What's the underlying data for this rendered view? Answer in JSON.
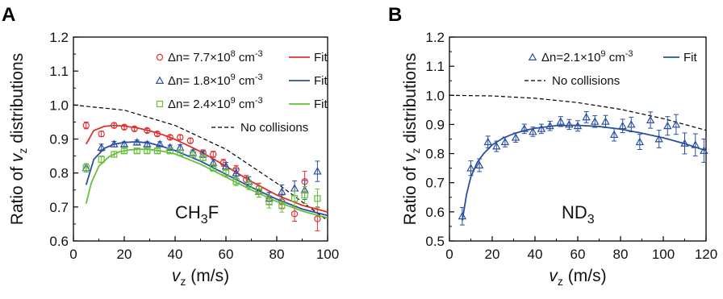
{
  "chart_data": [
    {
      "panel": "A",
      "type": "scatter",
      "xlabel": "v_z (m/s)",
      "ylabel": "Ratio of v_z distributions",
      "xlim": [
        0,
        100
      ],
      "ylim": [
        0.6,
        1.2
      ],
      "xticks": [
        0,
        20,
        40,
        60,
        80,
        100
      ],
      "yticks": [
        0.6,
        0.7,
        0.8,
        0.9,
        1.0,
        1.1,
        1.2
      ],
      "tick_labels_y": [
        "0.6",
        "0.7",
        "0.8",
        "0.9",
        "1.0",
        "1.1",
        "1.2"
      ],
      "annotation": "CH3F",
      "legend_position": "top-right",
      "nocoll_label": "No collisions",
      "nocoll_curve": {
        "x": [
          0,
          20,
          40,
          60,
          80,
          100
        ],
        "y": [
          1.0,
          0.985,
          0.94,
          0.87,
          0.77,
          0.66
        ]
      },
      "series": [
        {
          "name": "Δn= 7.7×10^8 cm^-3",
          "fit_label": "Fit",
          "marker": "circle",
          "color": "#e03030",
          "x": [
            5,
            11,
            16,
            20,
            24,
            29,
            33,
            38,
            42,
            46,
            51,
            55,
            59,
            64,
            68,
            73,
            77,
            82,
            87,
            91,
            96
          ],
          "y": [
            0.94,
            0.915,
            0.94,
            0.935,
            0.93,
            0.925,
            0.915,
            0.905,
            0.905,
            0.895,
            0.86,
            0.855,
            0.83,
            0.81,
            0.78,
            0.755,
            0.725,
            0.715,
            0.68,
            0.775,
            0.665
          ],
          "err": [
            0.01,
            0.008,
            0.007,
            0.006,
            0.006,
            0.006,
            0.006,
            0.006,
            0.007,
            0.007,
            0.008,
            0.009,
            0.01,
            0.012,
            0.013,
            0.015,
            0.017,
            0.02,
            0.022,
            0.03,
            0.035
          ],
          "fit": {
            "x": [
              5,
              8,
              12,
              16,
              20,
              25,
              30,
              35,
              40,
              50,
              60,
              70,
              80,
              90,
              100
            ],
            "y": [
              0.885,
              0.925,
              0.937,
              0.94,
              0.938,
              0.933,
              0.924,
              0.913,
              0.899,
              0.863,
              0.82,
              0.775,
              0.735,
              0.705,
              0.685
            ]
          }
        },
        {
          "name": "Δn= 1.8×10^9 cm^-3",
          "fit_label": "Fit",
          "marker": "triangle",
          "color": "#2a4fa0",
          "x": [
            5,
            11,
            16,
            20,
            25,
            29,
            34,
            38,
            42,
            47,
            51,
            55,
            60,
            64,
            69,
            73,
            77,
            82,
            87,
            91,
            96
          ],
          "y": [
            0.815,
            0.875,
            0.885,
            0.885,
            0.89,
            0.885,
            0.885,
            0.875,
            0.875,
            0.86,
            0.855,
            0.83,
            0.82,
            0.8,
            0.775,
            0.745,
            0.725,
            0.745,
            0.755,
            0.75,
            0.805
          ],
          "err": [
            0.012,
            0.01,
            0.008,
            0.007,
            0.007,
            0.007,
            0.007,
            0.007,
            0.008,
            0.008,
            0.009,
            0.01,
            0.011,
            0.012,
            0.014,
            0.016,
            0.018,
            0.02,
            0.022,
            0.028,
            0.03
          ],
          "fit": {
            "x": [
              5,
              8,
              12,
              16,
              20,
              25,
              30,
              35,
              40,
              50,
              60,
              70,
              80,
              90,
              100
            ],
            "y": [
              0.765,
              0.84,
              0.872,
              0.885,
              0.89,
              0.892,
              0.888,
              0.878,
              0.866,
              0.835,
              0.796,
              0.758,
              0.723,
              0.694,
              0.675
            ]
          }
        },
        {
          "name": "Δn= 2.4×10^9 cm^-3",
          "fit_label": "Fit",
          "marker": "square",
          "color": "#66c038",
          "x": [
            5,
            11,
            16,
            20,
            25,
            29,
            33,
            38,
            42,
            47,
            51,
            55,
            60,
            64,
            69,
            73,
            77,
            82,
            87,
            91,
            96
          ],
          "y": [
            0.815,
            0.84,
            0.855,
            0.865,
            0.865,
            0.865,
            0.865,
            0.865,
            0.86,
            0.855,
            0.845,
            0.815,
            0.8,
            0.775,
            0.765,
            0.745,
            0.715,
            0.705,
            0.725,
            0.735,
            0.725
          ],
          "err": [
            0.012,
            0.01,
            0.008,
            0.007,
            0.007,
            0.007,
            0.007,
            0.007,
            0.008,
            0.008,
            0.009,
            0.01,
            0.011,
            0.012,
            0.014,
            0.016,
            0.018,
            0.02,
            0.022,
            0.025,
            0.028
          ],
          "fit": {
            "x": [
              5,
              7,
              10,
              14,
              18,
              22,
              26,
              30,
              35,
              40,
              50,
              60,
              70,
              80,
              90,
              100
            ],
            "y": [
              0.71,
              0.77,
              0.82,
              0.848,
              0.862,
              0.868,
              0.87,
              0.869,
              0.864,
              0.856,
              0.826,
              0.788,
              0.75,
              0.716,
              0.688,
              0.668
            ]
          }
        }
      ]
    },
    {
      "panel": "B",
      "type": "scatter",
      "xlabel": "v_z (m/s)",
      "ylabel": "Ratio of v_z distributions",
      "xlim": [
        0,
        120
      ],
      "ylim": [
        0.5,
        1.2
      ],
      "xticks": [
        0,
        20,
        40,
        60,
        80,
        100,
        120
      ],
      "yticks": [
        0.5,
        0.6,
        0.7,
        0.8,
        0.9,
        1.0,
        1.1,
        1.2
      ],
      "tick_labels_y": [
        "0.5",
        "0.6",
        "0.7",
        "0.8",
        "0.9",
        "1.0",
        "1.1",
        "1.2"
      ],
      "annotation": "ND3",
      "legend_position": "top-right",
      "nocoll_label": "No collisions",
      "nocoll_curve": {
        "x": [
          0,
          20,
          40,
          60,
          80,
          100,
          120
        ],
        "y": [
          1.0,
          0.998,
          0.99,
          0.975,
          0.952,
          0.92,
          0.88
        ]
      },
      "series": [
        {
          "name": "Δn=2.1×10^9 cm^-3",
          "fit_label": "Fit",
          "marker": "triangle",
          "color": "#2a4fa0",
          "x": [
            6,
            10,
            14,
            18,
            22,
            26,
            31,
            35,
            39,
            43,
            47,
            52,
            56,
            60,
            64,
            68,
            73,
            77,
            81,
            85,
            89,
            94,
            98,
            102,
            106,
            110,
            115,
            119
          ],
          "y": [
            0.585,
            0.75,
            0.76,
            0.84,
            0.825,
            0.84,
            0.855,
            0.885,
            0.875,
            0.885,
            0.895,
            0.91,
            0.9,
            0.895,
            0.925,
            0.91,
            0.91,
            0.865,
            0.895,
            0.9,
            0.84,
            0.915,
            0.85,
            0.895,
            0.9,
            0.835,
            0.83,
            0.81
          ],
          "err": [
            0.03,
            0.025,
            0.022,
            0.02,
            0.018,
            0.017,
            0.016,
            0.016,
            0.016,
            0.016,
            0.016,
            0.017,
            0.017,
            0.018,
            0.019,
            0.02,
            0.021,
            0.022,
            0.023,
            0.025,
            0.026,
            0.028,
            0.03,
            0.032,
            0.034,
            0.036,
            0.038,
            0.04
          ],
          "fit": {
            "x": [
              6,
              8,
              10,
              13,
              16,
              20,
              25,
              30,
              35,
              40,
              50,
              60,
              70,
              80,
              90,
              100,
              110,
              120
            ],
            "y": [
              0.57,
              0.66,
              0.72,
              0.77,
              0.8,
              0.83,
              0.853,
              0.868,
              0.879,
              0.887,
              0.896,
              0.897,
              0.893,
              0.884,
              0.87,
              0.854,
              0.834,
              0.81
            ]
          }
        }
      ]
    }
  ]
}
